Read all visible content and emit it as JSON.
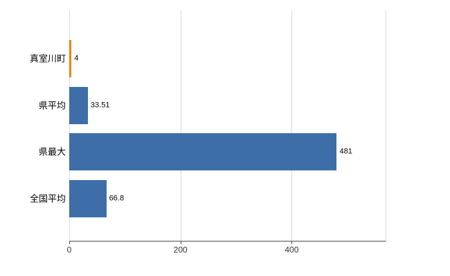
{
  "chart_data": {
    "type": "bar",
    "orientation": "horizontal",
    "title": "",
    "xlabel": "",
    "ylabel": "",
    "categories": [
      "真室川町",
      "県平均",
      "県最大",
      "全国平均"
    ],
    "values": [
      4,
      33.51,
      481,
      66.8
    ],
    "value_labels": [
      "4",
      "33.51",
      "481",
      "66.8"
    ],
    "bar_colors": [
      "#f08300",
      "#3d6ea8",
      "#3d6ea8",
      "#3d6ea8"
    ],
    "xlim": [
      0,
      570
    ],
    "x_ticks": [
      0,
      200,
      400
    ],
    "grid": true,
    "legend": "none",
    "background": "#ffffff"
  },
  "colors": {
    "gridline": "#d9d9d9",
    "axis": "#4d4d4d",
    "text": "#000000"
  }
}
